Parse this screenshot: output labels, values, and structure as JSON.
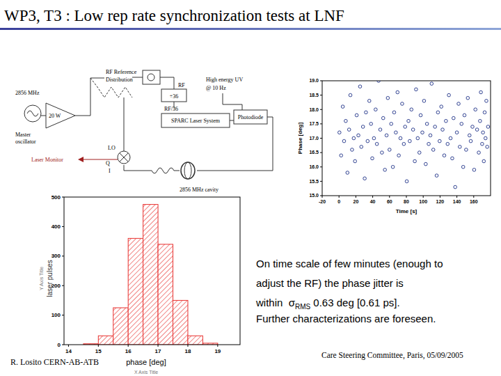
{
  "slide": {
    "title": "WP3, T3 : Low rep rate synchronization tests at LNF",
    "text": [
      "On time scale of few minutes (enough to",
      "adjust the RF) the phase jitter is",
      "within  σ",
      "RMS",
      " 0.63 deg [0.61 ps].",
      "Further characterizations are foreseen."
    ],
    "footer_left": "R. Losito CERN-AB-ATB",
    "footer_right": "Care Steering Committee, Paris, 05/09/2005"
  },
  "diagram": {
    "labels": [
      "RF Reference",
      "Distribution",
      "2856 MHz",
      "Master",
      "oscillator",
      "20 W",
      "RF",
      "÷36",
      "RF/36",
      "SPARC Laser System",
      "High energy UV",
      "@ 10 Hz",
      "Photodiode",
      "LO",
      "Q",
      "I",
      "Laser Monitor",
      "2856 MHz cavity"
    ]
  },
  "chart_data": [
    {
      "type": "scatter",
      "xlabel": "Time [s]",
      "ylabel": "Phase [deg]",
      "color": "#1c2f86",
      "marker": "circle",
      "x": [
        0.5,
        2.5,
        4.5,
        6,
        8,
        10,
        12,
        13.5,
        15.5,
        17.5,
        19,
        21,
        23,
        25,
        26.5,
        28.5,
        30.5,
        32,
        34,
        36,
        38,
        39.5,
        41.5,
        43.5,
        45,
        47,
        49,
        51,
        52.5,
        54.5,
        56.5,
        58,
        60,
        62,
        64,
        65.5,
        67.5,
        69.5,
        71,
        73,
        75,
        77,
        78.5,
        80.5,
        82.5,
        84,
        86,
        88,
        90,
        91.5,
        93.5,
        95.5,
        97,
        99,
        101,
        103,
        104.5,
        106.5,
        108.5,
        110,
        112,
        114,
        116,
        117.5,
        119.5,
        121.5,
        123,
        125,
        127,
        129,
        130.5,
        132.5,
        134.5,
        136,
        138,
        140,
        142,
        143.5,
        145.5,
        147.5,
        149,
        151,
        153,
        155,
        156.5,
        158.5,
        160.5,
        162,
        164,
        166,
        167.5,
        168.5,
        170,
        171,
        172,
        173,
        174,
        175,
        176,
        177
      ],
      "values": [
        17.2,
        16.4,
        18.1,
        16.9,
        17.6,
        15.8,
        17.3,
        18.5,
        16.6,
        17.0,
        16.2,
        17.8,
        17.1,
        18.8,
        16.7,
        17.4,
        15.6,
        17.9,
        16.9,
        18.3,
        17.5,
        16.3,
        17.0,
        18.0,
        16.8,
        19.0,
        17.3,
        16.5,
        17.7,
        15.9,
        17.1,
        18.4,
        16.6,
        17.5,
        16.0,
        17.9,
        17.2,
        18.6,
        16.4,
        17.0,
        18.2,
        16.8,
        17.4,
        15.5,
        17.6,
        16.9,
        18.0,
        17.3,
        16.2,
        18.7,
        17.0,
        16.5,
        17.8,
        17.2,
        18.3,
        16.1,
        17.5,
        16.8,
        17.1,
        18.9,
        16.6,
        17.4,
        15.7,
        17.9,
        16.9,
        18.1,
        17.3,
        16.4,
        17.6,
        16.8,
        18.5,
        17.0,
        16.3,
        17.7,
        15.3,
        17.2,
        18.2,
        16.7,
        17.5,
        16.0,
        17.8,
        16.6,
        18.4,
        17.1,
        16.9,
        17.4,
        15.9,
        18.0,
        17.3,
        16.5,
        17.6,
        18.6,
        16.8,
        17.2,
        16.2,
        17.9,
        17.0,
        18.3,
        16.7,
        17.4
      ],
      "xlim": [
        -20,
        180
      ],
      "ylim": [
        15,
        19
      ],
      "xticks": [
        -20,
        0,
        20,
        40,
        60,
        80,
        100,
        120,
        140,
        160
      ],
      "yticks": [
        {
          "value": 15,
          "label": "15.0"
        },
        {
          "value": 15.5,
          "label": "15.5"
        },
        {
          "value": 16,
          "label": "16.0"
        },
        {
          "value": 16.5,
          "label": "16.5"
        },
        {
          "value": 17,
          "label": "17.0"
        },
        {
          "value": 17.5,
          "label": "17.5"
        },
        {
          "value": 18,
          "label": "18.0"
        },
        {
          "value": 18.5,
          "label": "18.5"
        },
        {
          "value": 19,
          "label": "19.0"
        }
      ]
    },
    {
      "type": "histogram",
      "xlabel": "phase [deg]",
      "ylabel": "laser pulses",
      "color": "#e8312f",
      "annotations": [
        "Y Axis Title",
        "X Axis Title"
      ],
      "bins": [
        14.5,
        15,
        15.5,
        16,
        16.5,
        17,
        17.5,
        18,
        18.5,
        19
      ],
      "values": [
        3,
        30,
        125,
        360,
        475,
        340,
        150,
        30,
        5
      ],
      "xlim": [
        13.85,
        19.75
      ],
      "ylim": [
        0,
        500
      ],
      "xticks": [
        14,
        15,
        16,
        17,
        18,
        19
      ],
      "yticks": [
        0,
        100,
        200,
        300,
        400,
        500
      ]
    }
  ]
}
